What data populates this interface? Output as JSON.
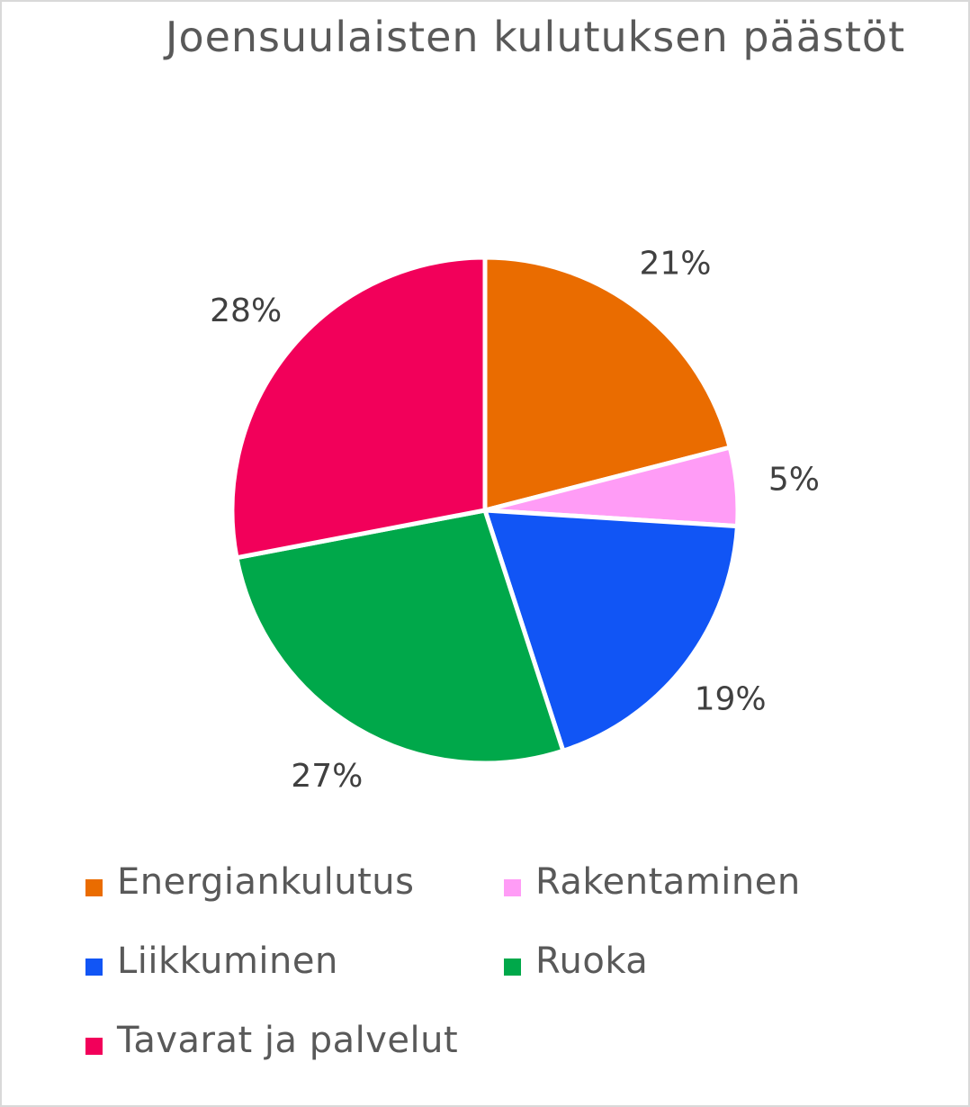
{
  "chart_data": {
    "type": "pie",
    "title": "Joensuulaisten kulutuksen päästöt",
    "slices": [
      {
        "name": "Energiankulutus",
        "value": 21,
        "label": "21%",
        "color": "#ea6c00"
      },
      {
        "name": "Rakentaminen",
        "value": 5,
        "label": "5%",
        "color": "#ff9cf6"
      },
      {
        "name": "Liikkuminen",
        "value": 19,
        "label": "19%",
        "color": "#1155f5"
      },
      {
        "name": "Ruoka",
        "value": 27,
        "label": "27%",
        "color": "#00a84a"
      },
      {
        "name": "Tavarat ja palvelut",
        "value": 28,
        "label": "28%",
        "color": "#f2005a"
      }
    ],
    "legend_position": "bottom"
  }
}
